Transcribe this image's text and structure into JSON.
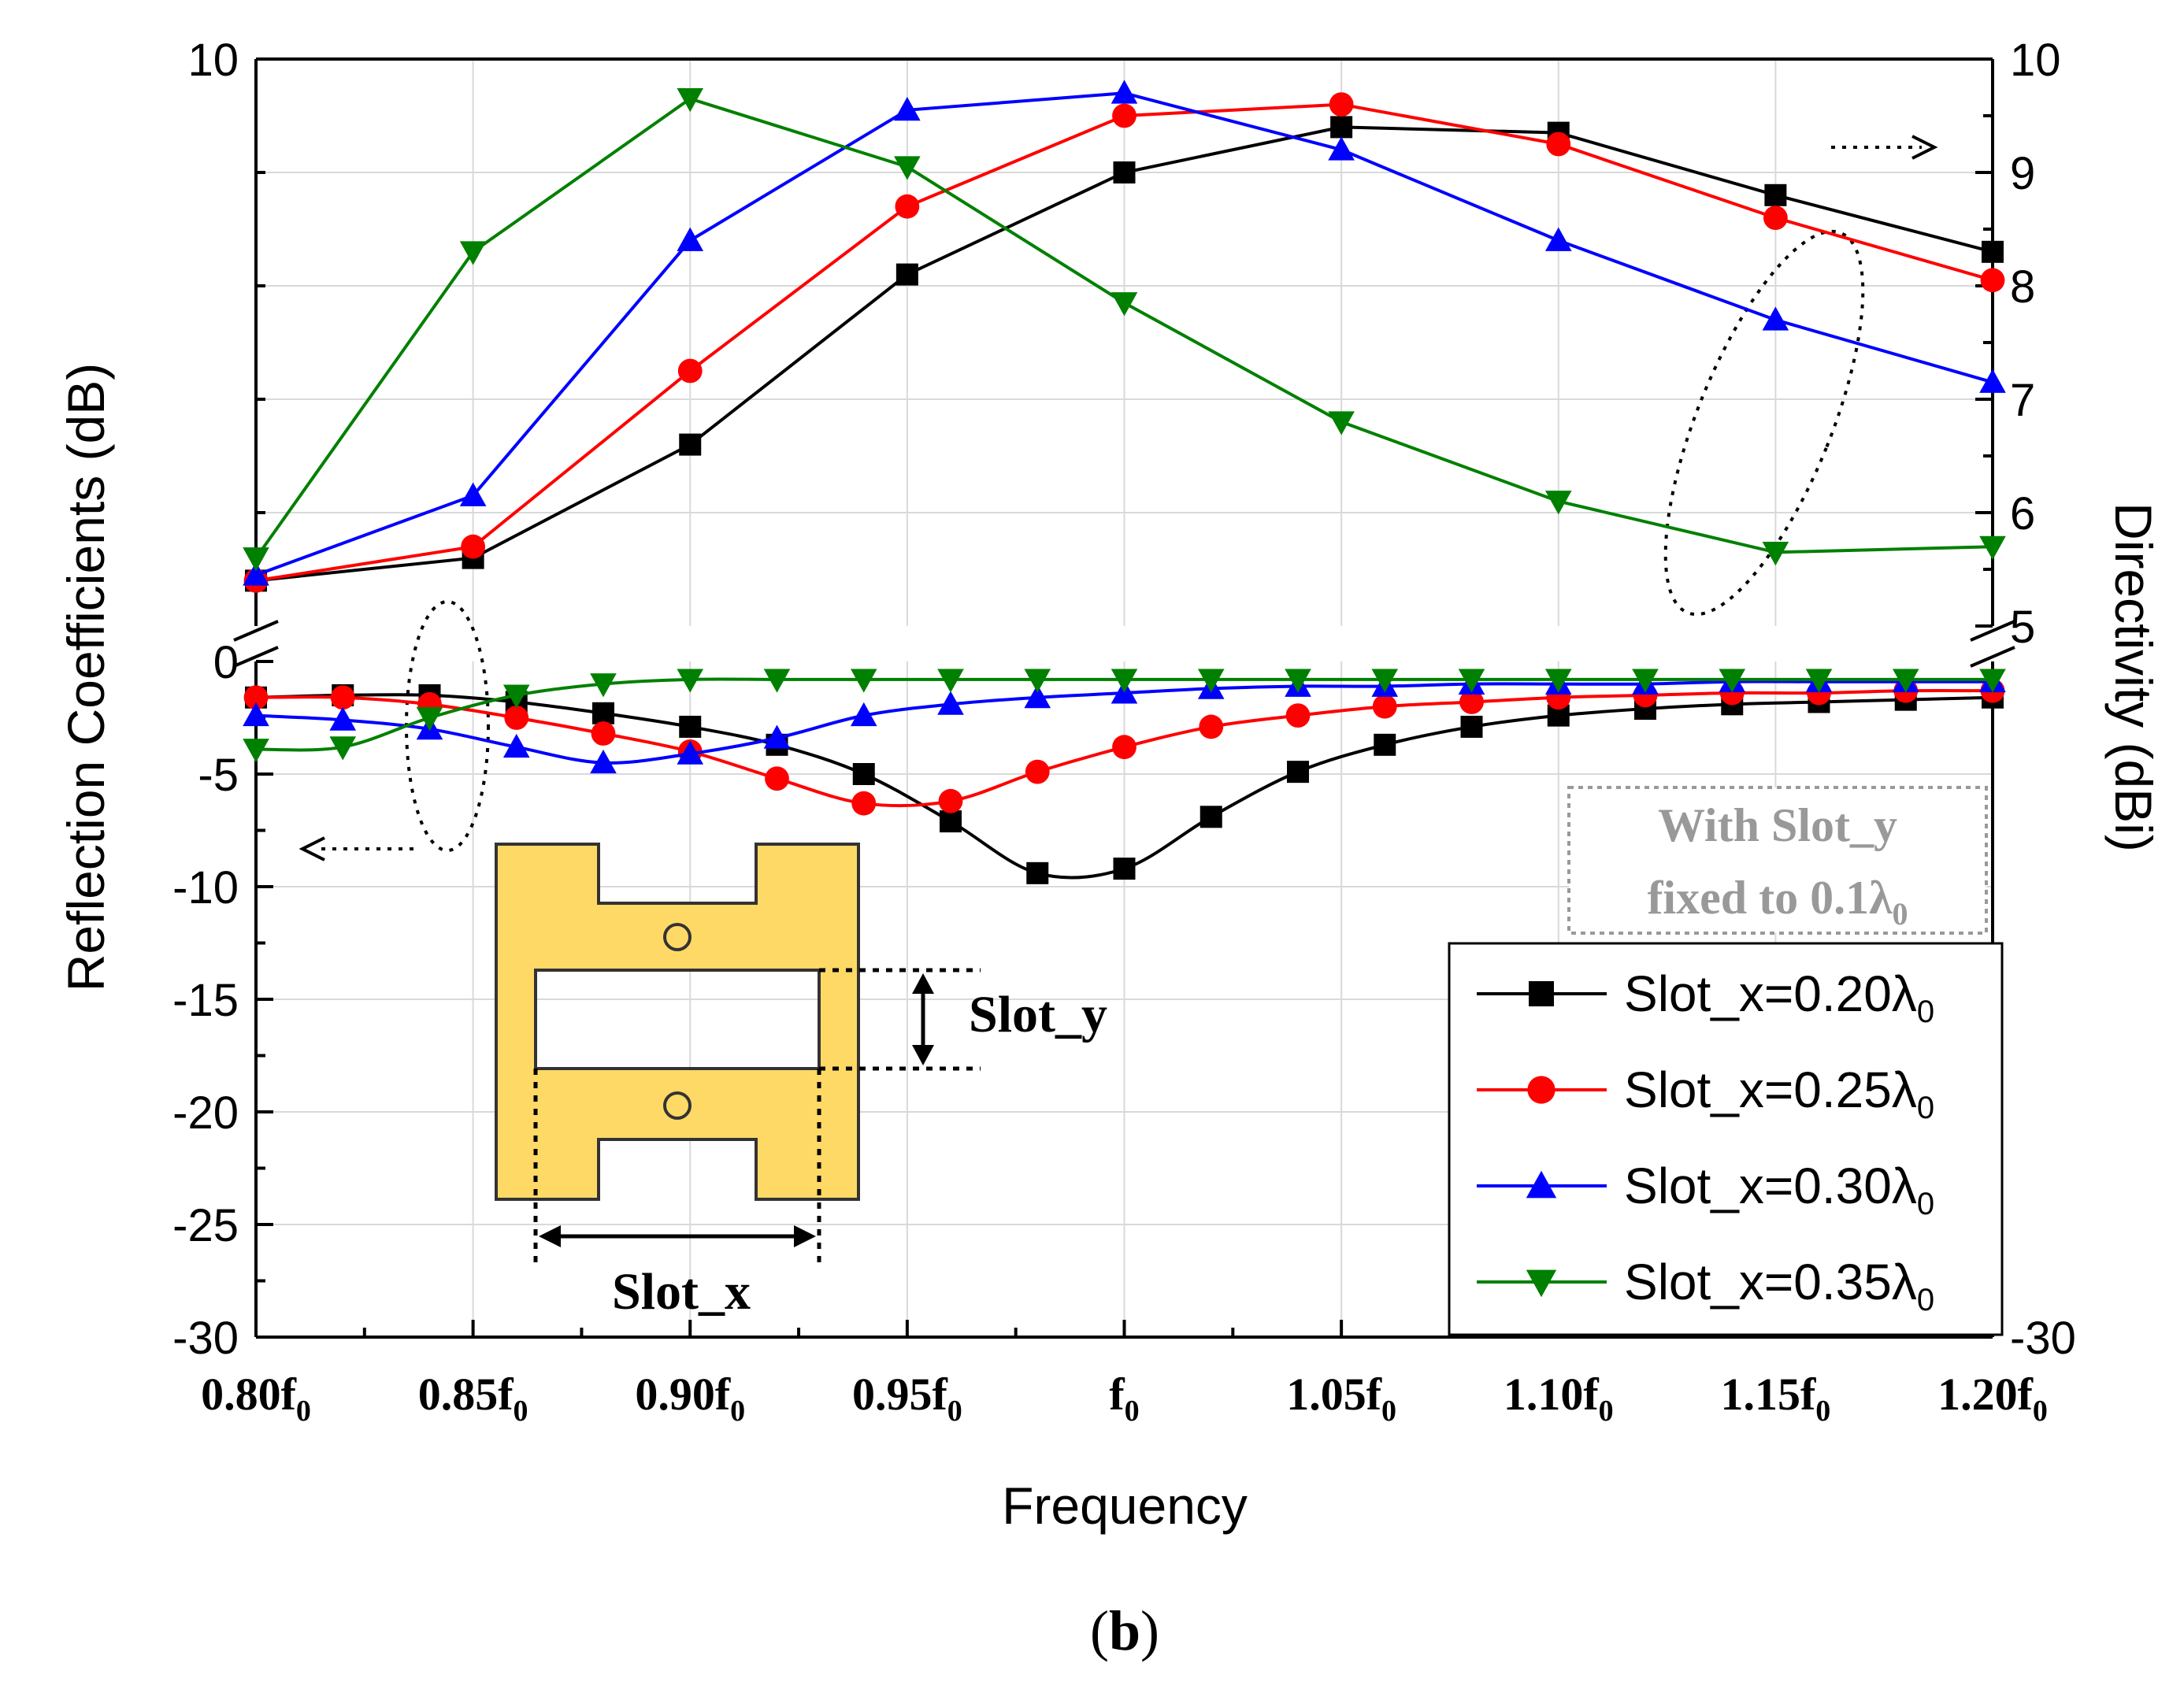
{
  "chart_data": {
    "type": "line",
    "xlabel": "Frequency",
    "ylabel_left": "Reflection Coefficients (dB)",
    "ylabel_right": "Directivity (dBi)",
    "x_tick_labels": [
      {
        "base": "0.80f",
        "sub": "0"
      },
      {
        "base": "0.85f",
        "sub": "0"
      },
      {
        "base": "0.90f",
        "sub": "0"
      },
      {
        "base": "0.95f",
        "sub": "0"
      },
      {
        "base": "f",
        "sub": "0"
      },
      {
        "base": "1.05f",
        "sub": "0"
      },
      {
        "base": "1.10f",
        "sub": "0"
      },
      {
        "base": "1.15f",
        "sub": "0"
      },
      {
        "base": "1.20f",
        "sub": "0"
      }
    ],
    "xlim": [
      0.8,
      1.2
    ],
    "left_axis": {
      "ylim": [
        -30,
        0
      ],
      "ticks": [
        "0",
        "-5",
        "-10",
        "-15",
        "-20",
        "-25",
        "-30"
      ],
      "top_tick": "10"
    },
    "right_axis": {
      "ylim": [
        5,
        10
      ],
      "ticks": [
        "10",
        "9",
        "8",
        "7",
        "6",
        "5"
      ],
      "bottom_tick": "-30"
    },
    "grid": true,
    "legend_position": "bottom-right",
    "series": [
      {
        "name": "Slot_x=0.20λ0",
        "legend_base": "Slot_x=0.20λ",
        "legend_sub": "0",
        "color": "#000000",
        "marker": "square",
        "reflection_x": [
          0.8,
          0.82,
          0.84,
          0.86,
          0.88,
          0.9,
          0.92,
          0.94,
          0.96,
          0.98,
          1.0,
          1.02,
          1.04,
          1.06,
          1.08,
          1.1,
          1.12,
          1.14,
          1.16,
          1.18,
          1.2
        ],
        "reflection_y": [
          -1.6,
          -1.5,
          -1.5,
          -1.8,
          -2.3,
          -2.9,
          -3.7,
          -5.0,
          -7.1,
          -9.4,
          -9.2,
          -6.9,
          -4.9,
          -3.7,
          -2.9,
          -2.4,
          -2.1,
          -1.9,
          -1.8,
          -1.7,
          -1.6
        ],
        "directivity_x": [
          0.8,
          0.85,
          0.9,
          0.95,
          1.0,
          1.05,
          1.1,
          1.15,
          1.2
        ],
        "directivity_y": [
          5.4,
          5.6,
          6.6,
          8.1,
          9.0,
          9.4,
          9.35,
          8.8,
          8.3
        ]
      },
      {
        "name": "Slot_x=0.25λ0",
        "legend_base": "Slot_x=0.25λ",
        "legend_sub": "0",
        "color": "#ff0000",
        "marker": "circle",
        "reflection_x": [
          0.8,
          0.82,
          0.84,
          0.86,
          0.88,
          0.9,
          0.92,
          0.94,
          0.96,
          0.98,
          1.0,
          1.02,
          1.04,
          1.06,
          1.08,
          1.1,
          1.12,
          1.14,
          1.16,
          1.18,
          1.2
        ],
        "reflection_y": [
          -1.6,
          -1.6,
          -1.9,
          -2.5,
          -3.2,
          -4.0,
          -5.2,
          -6.3,
          -6.2,
          -4.9,
          -3.8,
          -2.9,
          -2.4,
          -2.0,
          -1.8,
          -1.6,
          -1.5,
          -1.4,
          -1.4,
          -1.3,
          -1.3
        ],
        "directivity_x": [
          0.8,
          0.85,
          0.9,
          0.95,
          1.0,
          1.05,
          1.1,
          1.15,
          1.2
        ],
        "directivity_y": [
          5.4,
          5.7,
          7.25,
          8.7,
          9.5,
          9.6,
          9.25,
          8.6,
          8.05
        ]
      },
      {
        "name": "Slot_x=0.30λ0",
        "legend_base": "Slot_x=0.30λ",
        "legend_sub": "0",
        "color": "#0000ff",
        "marker": "triangle-up",
        "reflection_x": [
          0.8,
          0.82,
          0.84,
          0.86,
          0.88,
          0.9,
          0.92,
          0.94,
          0.96,
          0.98,
          1.0,
          1.02,
          1.04,
          1.06,
          1.08,
          1.1,
          1.12,
          1.14,
          1.16,
          1.18,
          1.2
        ],
        "reflection_y": [
          -2.4,
          -2.6,
          -3.0,
          -3.8,
          -4.5,
          -4.1,
          -3.4,
          -2.4,
          -1.9,
          -1.6,
          -1.4,
          -1.2,
          -1.1,
          -1.1,
          -1.0,
          -1.0,
          -1.0,
          -0.9,
          -0.9,
          -0.9,
          -0.9
        ],
        "directivity_x": [
          0.8,
          0.85,
          0.9,
          0.95,
          1.0,
          1.05,
          1.1,
          1.15,
          1.2
        ],
        "directivity_y": [
          5.45,
          6.15,
          8.4,
          9.55,
          9.7,
          9.2,
          8.4,
          7.7,
          7.15
        ]
      },
      {
        "name": "Slot_x=0.35λ0",
        "legend_base": "Slot_x=0.35λ",
        "legend_sub": "0",
        "color": "#008000",
        "marker": "triangle-down",
        "reflection_x": [
          0.8,
          0.82,
          0.84,
          0.86,
          0.88,
          0.9,
          0.92,
          0.94,
          0.96,
          0.98,
          1.0,
          1.02,
          1.04,
          1.06,
          1.08,
          1.1,
          1.12,
          1.14,
          1.16,
          1.18,
          1.2
        ],
        "reflection_y": [
          -3.9,
          -3.8,
          -2.5,
          -1.5,
          -1.0,
          -0.8,
          -0.8,
          -0.8,
          -0.8,
          -0.8,
          -0.8,
          -0.8,
          -0.8,
          -0.8,
          -0.8,
          -0.8,
          -0.8,
          -0.8,
          -0.8,
          -0.8,
          -0.8
        ],
        "directivity_x": [
          0.8,
          0.85,
          0.9,
          0.95,
          1.0,
          1.05,
          1.1,
          1.15,
          1.2
        ],
        "directivity_y": [
          5.6,
          8.3,
          9.65,
          9.05,
          7.85,
          6.8,
          6.1,
          5.65,
          5.7
        ]
      }
    ],
    "annotation_box": {
      "line1": "With Slot_y",
      "line2_base": "fixed to 0.1λ",
      "line2_sub": "0"
    },
    "inset_labels": {
      "slot_y": "Slot_y",
      "slot_x": "Slot_x"
    },
    "inset_color": "#ffd966"
  },
  "caption": {
    "open": "(",
    "letter": "b",
    "close": ")"
  }
}
